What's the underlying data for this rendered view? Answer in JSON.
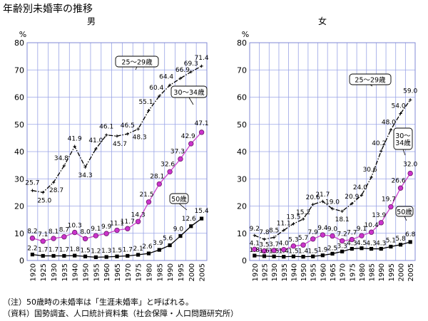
{
  "page_title": "年齢別未婚率の推移",
  "notes": {
    "note1": "（注）50歳時の未婚率は「生涯未婚率」と呼ばれる。",
    "note2": "（資料）国勢調査、人口統計資料集（社会保障・人口問題研究所）"
  },
  "chart_data": [
    {
      "type": "line",
      "title": "男",
      "ylabel": "%",
      "ylim": [
        0,
        80
      ],
      "yticks": [
        0,
        10,
        20,
        30,
        40,
        50,
        60,
        70,
        80
      ],
      "grid": true,
      "x": [
        "1920",
        "1925",
        "1930",
        "1935",
        "1940",
        "1950",
        "1955",
        "1960",
        "1965",
        "1970",
        "1975",
        "1980",
        "1985",
        "1990",
        "1995",
        "2000",
        "2005"
      ],
      "series": [
        {
          "name": "25～29歳",
          "color": "#000000",
          "style": "dashdot",
          "marker": "plus",
          "values": [
            25.7,
            25.0,
            28.7,
            34.8,
            41.9,
            34.3,
            41.0,
            46.1,
            45.7,
            46.5,
            48.3,
            55.1,
            60.4,
            64.4,
            66.9,
            69.3,
            71.4
          ]
        },
        {
          "name": "30～34歳",
          "color": "#cc44cc",
          "style": "solid",
          "marker": "circle",
          "values": [
            8.2,
            7.1,
            8.1,
            8.7,
            10.3,
            8.0,
            9.1,
            9.9,
            11.1,
            11.7,
            14.3,
            21.5,
            28.1,
            32.6,
            37.3,
            42.9,
            47.1
          ]
        },
        {
          "name": "50歳",
          "color": "#000000",
          "style": "solid",
          "marker": "square",
          "values": [
            2.2,
            1.7,
            1.7,
            1.7,
            1.8,
            1.5,
            1.2,
            1.3,
            1.5,
            1.7,
            2.1,
            2.6,
            3.9,
            5.6,
            9.0,
            12.6,
            15.4
          ]
        }
      ],
      "data_labels": [
        [
          "25.7",
          "25.0",
          "28.7",
          "34.8",
          "41.9",
          "34.3",
          "41.0",
          "46.1",
          "45.7",
          "46.5",
          "48.3",
          "55.1",
          "60.4",
          "64.4",
          "66.9",
          "69.3",
          "71.4"
        ],
        [
          "8.2",
          "7.1",
          "8.1",
          "8.7",
          "10.3",
          "8.0",
          "9.1",
          "9.9",
          "11.1",
          "11.7",
          "14.3",
          "21.5",
          "28.1",
          "32.6",
          "37.3",
          "42.9",
          "47.1"
        ],
        [
          "2.2",
          "1.7",
          "1.7",
          "1.7",
          "1.8",
          "1.5",
          "1.2",
          "1.3",
          "1.5",
          "1.7",
          "2.1",
          "2.6",
          "3.9",
          "5.6",
          "9.0",
          "12.6",
          "15.4"
        ]
      ]
    },
    {
      "type": "line",
      "title": "女",
      "ylabel": "%",
      "ylim": [
        0,
        80
      ],
      "yticks": [
        0,
        10,
        20,
        30,
        40,
        50,
        60,
        70,
        80
      ],
      "grid": true,
      "x": [
        "1920",
        "1925",
        "1930",
        "1935",
        "1940",
        "1950",
        "1955",
        "1960",
        "1965",
        "1970",
        "1975",
        "1980",
        "1985",
        "1990",
        "1995",
        "2000",
        "2005"
      ],
      "series": [
        {
          "name": "25～29歳",
          "color": "#000000",
          "style": "dashdot",
          "marker": "plus",
          "values": [
            9.2,
            7.8,
            8.5,
            11.1,
            13.5,
            15.2,
            20.6,
            21.7,
            19.0,
            18.1,
            20.9,
            24.0,
            30.6,
            40.2,
            48.0,
            54.0,
            59.0
          ]
        },
        {
          "name": "30～34歳",
          "color": "#cc44cc",
          "style": "solid",
          "marker": "circle",
          "values": [
            4.1,
            3.5,
            3.7,
            4.0,
            5.3,
            5.7,
            7.9,
            9.4,
            9.0,
            7.2,
            7.7,
            9.1,
            10.4,
            13.9,
            19.7,
            26.6,
            32.0
          ]
        },
        {
          "name": "50歳",
          "color": "#000000",
          "style": "solid",
          "marker": "square",
          "values": [
            1.8,
            1.6,
            1.5,
            1.4,
            1.5,
            1.4,
            1.5,
            1.9,
            2.5,
            3.3,
            4.3,
            4.5,
            4.3,
            4.3,
            5.1,
            5.8,
            6.8
          ]
        }
      ],
      "data_labels": [
        [
          "9.2",
          "7.8",
          "8.5",
          "11.1",
          "13.5",
          "15.2",
          "20.6",
          "21.7",
          "19.0",
          "18.1",
          "20.9",
          "24.0",
          "30.6",
          "40.2",
          "48.0",
          "54.0",
          "59.0"
        ],
        [
          "4.1",
          "3.5",
          "3.7",
          "4.0",
          "5.3",
          "5.7",
          "7.9",
          "9.4",
          "9.0",
          "7.2",
          "7.7",
          "9.1",
          "10.4",
          "13.9",
          "19.7",
          "26.6",
          "32.0"
        ],
        [
          "1.8",
          "1.6",
          "1.5",
          "1.4",
          "1.5",
          "1.4",
          "1.5",
          "1.9",
          "2.5",
          "3.3",
          "4.3",
          "4.5",
          "4.3",
          "4.3",
          "5.1",
          "5.8",
          "6.8"
        ]
      ]
    }
  ]
}
